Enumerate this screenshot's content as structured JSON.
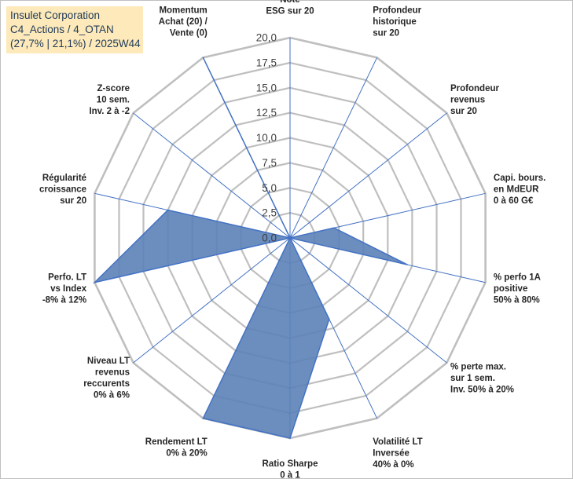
{
  "header": {
    "line1": "Insulet Corporation",
    "line2": "C4_Actions / 4_OTAN",
    "line3": "(27,7% | 21,1%) / 2025W44"
  },
  "chart_data": {
    "type": "radar",
    "rmax": 20,
    "ticks": [
      "0,0",
      "2,5",
      "5,0",
      "7,5",
      "10,0",
      "12,5",
      "15,0",
      "17,5",
      "20,0"
    ],
    "tick_values": [
      0,
      2.5,
      5,
      7.5,
      10,
      12.5,
      15,
      17.5,
      20
    ],
    "fill_color": "#5b82b8",
    "line_color": "#4472c4",
    "grid_color": "#bfbfbf",
    "axes": [
      {
        "label": [
          "Note",
          "ESG sur 20"
        ],
        "value": 0
      },
      {
        "label": [
          "Profondeur",
          "historique",
          "sur 20"
        ],
        "value": 0
      },
      {
        "label": [
          "Profondeur",
          "revenus",
          "sur 20"
        ],
        "value": 0
      },
      {
        "label": [
          "Capi. bours.",
          "en MdEUR",
          "0 à 60 G€"
        ],
        "value": 4.5
      },
      {
        "label": [
          "% perfo 1A",
          "positive",
          "50% à 80%"
        ],
        "value": 12
      },
      {
        "label": [
          "% perte max.",
          "sur 1 sem.",
          "Inv. 50% à 20%"
        ],
        "value": 0
      },
      {
        "label": [
          "Volatilité LT",
          "Inversée",
          "40% à 0%"
        ],
        "value": 9
      },
      {
        "label": [
          "Ratio Sharpe",
          "0 à 1"
        ],
        "value": 20
      },
      {
        "label": [
          "Rendement LT",
          "0% à 20%"
        ],
        "value": 20
      },
      {
        "label": [
          "Niveau LT",
          "revenus",
          "reccurents",
          "0% à 6%"
        ],
        "value": 0
      },
      {
        "label": [
          "Perfo. LT",
          "vs Index",
          "-8% à 12%"
        ],
        "value": 20
      },
      {
        "label": [
          "Régularité",
          "croissance",
          "sur 20"
        ],
        "value": 12.5
      },
      {
        "label": [
          "Z-score",
          "10 sem.",
          "Inv. 2 à -2"
        ],
        "value": 0
      },
      {
        "label": [
          "Momentum",
          "Achat (20) /",
          "Vente (0)"
        ],
        "value": 20
      }
    ]
  }
}
